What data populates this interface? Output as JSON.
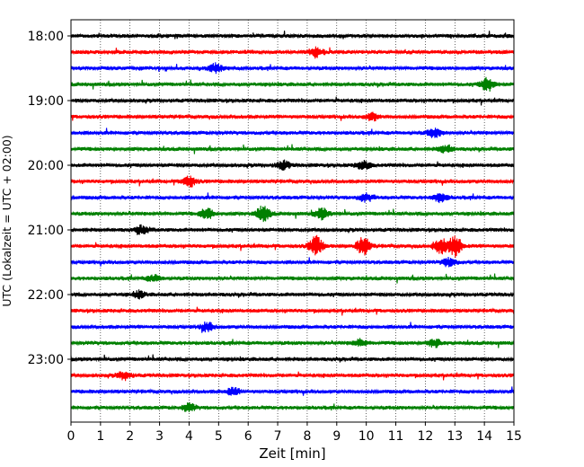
{
  "chart_data": {
    "type": "line",
    "xlabel": "Zeit  [min]",
    "ylabel": "UTC (Lokalzeit = UTC + 02:00)",
    "xlim": [
      0,
      15
    ],
    "x_ticks": [
      "0",
      "1",
      "2",
      "3",
      "4",
      "5",
      "6",
      "7",
      "8",
      "9",
      "10",
      "11",
      "12",
      "13",
      "14",
      "15"
    ],
    "y_ticks": [
      "18:00",
      "19:00",
      "20:00",
      "21:00",
      "22:00",
      "23:00"
    ],
    "grid_x": true,
    "trace_interval_minutes": 15,
    "trace_colors": [
      "#000000",
      "#ff0000",
      "#0000ff",
      "#008000"
    ],
    "traces": [
      {
        "start": "18:00",
        "color": "#000000",
        "events": []
      },
      {
        "start": "18:15",
        "color": "#ff0000",
        "events": [
          {
            "x": 8.3,
            "amp": 1.0
          }
        ]
      },
      {
        "start": "18:30",
        "color": "#0000ff",
        "events": [
          {
            "x": 4.9,
            "amp": 0.8
          }
        ]
      },
      {
        "start": "18:45",
        "color": "#008000",
        "events": [
          {
            "x": 14.1,
            "amp": 1.3
          }
        ]
      },
      {
        "start": "19:00",
        "color": "#000000",
        "events": []
      },
      {
        "start": "19:15",
        "color": "#ff0000",
        "events": [
          {
            "x": 10.2,
            "amp": 0.7
          }
        ]
      },
      {
        "start": "19:30",
        "color": "#0000ff",
        "events": [
          {
            "x": 12.3,
            "amp": 0.8
          }
        ]
      },
      {
        "start": "19:45",
        "color": "#008000",
        "events": [
          {
            "x": 12.7,
            "amp": 0.7
          }
        ]
      },
      {
        "start": "20:00",
        "color": "#000000",
        "events": [
          {
            "x": 7.2,
            "amp": 0.8
          },
          {
            "x": 9.9,
            "amp": 0.8
          }
        ]
      },
      {
        "start": "20:15",
        "color": "#ff0000",
        "events": [
          {
            "x": 4.0,
            "amp": 1.0
          }
        ]
      },
      {
        "start": "20:30",
        "color": "#0000ff",
        "events": [
          {
            "x": 10.0,
            "amp": 0.8
          },
          {
            "x": 12.5,
            "amp": 0.8
          }
        ]
      },
      {
        "start": "20:45",
        "color": "#008000",
        "events": [
          {
            "x": 4.6,
            "amp": 1.0
          },
          {
            "x": 6.5,
            "amp": 1.6
          },
          {
            "x": 8.5,
            "amp": 1.0
          }
        ]
      },
      {
        "start": "21:00",
        "color": "#000000",
        "events": [
          {
            "x": 2.4,
            "amp": 0.8
          }
        ]
      },
      {
        "start": "21:15",
        "color": "#ff0000",
        "events": [
          {
            "x": 8.3,
            "amp": 2.0
          },
          {
            "x": 9.9,
            "amp": 1.8
          },
          {
            "x": 12.5,
            "amp": 1.5
          },
          {
            "x": 13.0,
            "amp": 2.2
          }
        ]
      },
      {
        "start": "21:30",
        "color": "#0000ff",
        "events": [
          {
            "x": 12.8,
            "amp": 0.8
          }
        ]
      },
      {
        "start": "21:45",
        "color": "#008000",
        "events": [
          {
            "x": 2.8,
            "amp": 0.6
          }
        ]
      },
      {
        "start": "22:00",
        "color": "#000000",
        "events": [
          {
            "x": 2.3,
            "amp": 0.6
          }
        ]
      },
      {
        "start": "22:15",
        "color": "#ff0000",
        "events": []
      },
      {
        "start": "22:30",
        "color": "#0000ff",
        "events": [
          {
            "x": 4.6,
            "amp": 0.8
          }
        ]
      },
      {
        "start": "22:45",
        "color": "#008000",
        "events": [
          {
            "x": 9.8,
            "amp": 0.7
          },
          {
            "x": 12.3,
            "amp": 0.8
          }
        ]
      },
      {
        "start": "23:00",
        "color": "#000000",
        "events": []
      },
      {
        "start": "23:15",
        "color": "#ff0000",
        "events": [
          {
            "x": 1.8,
            "amp": 0.7
          }
        ]
      },
      {
        "start": "23:30",
        "color": "#0000ff",
        "events": [
          {
            "x": 5.5,
            "amp": 0.7
          }
        ]
      },
      {
        "start": "23:45",
        "color": "#008000",
        "events": [
          {
            "x": 4.0,
            "amp": 0.7
          }
        ]
      }
    ]
  }
}
